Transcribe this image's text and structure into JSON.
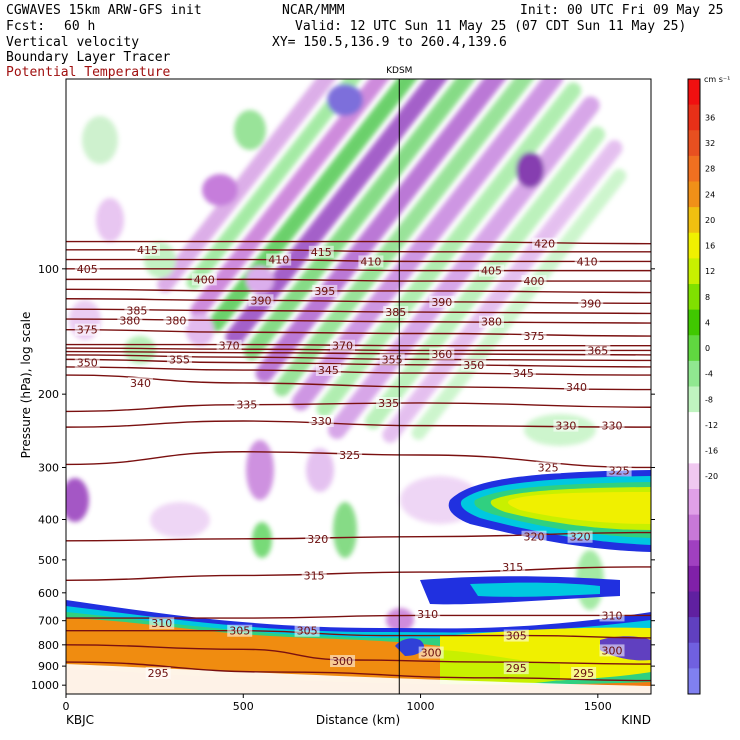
{
  "header": {
    "model": "CGWAVES 15km ARW-GFS init",
    "fcst_label": "Fcst:",
    "fcst_value": "60 h",
    "field1": "Vertical velocity",
    "field2": "Boundary Layer Tracer",
    "field3": "Potential Temperature",
    "org": "NCAR/MMM",
    "init": "Init: 00 UTC Fri 09 May 25",
    "valid": "Valid: 12 UTC Sun 11 May 25 (07 CDT Sun 11 May 25)",
    "xy": "XY= 150.5,136.9 to 260.4,139.6",
    "station_marker": "KDSM",
    "left_station": "KBJC",
    "right_station": "KIND"
  },
  "colors": {
    "theta": "#7a1010",
    "theta_label": "#6b0f0f",
    "field3_text": "#a01010"
  },
  "chart_data": {
    "type": "heatmap",
    "xlabel": "Distance (km)",
    "ylabel": "Pressure (hPa), log scale",
    "xlim": [
      0,
      1650
    ],
    "ylim_hpa": [
      1050,
      35
    ],
    "x_ticks": [
      0,
      500,
      1000,
      1500
    ],
    "y_ticks": [
      100,
      200,
      300,
      400,
      500,
      600,
      700,
      800,
      900,
      1000
    ],
    "colorbar": {
      "units": "cm s⁻¹",
      "tick_labels": [
        36,
        32,
        28,
        24,
        20,
        16,
        12,
        8,
        4,
        0,
        -4,
        -8,
        -12,
        -16,
        -20
      ],
      "colors": [
        "#f01010",
        "#e83018",
        "#e85020",
        "#f07020",
        "#f09018",
        "#f0c010",
        "#f0f000",
        "#c8f000",
        "#80e000",
        "#40c800",
        "#60d840",
        "#90e890",
        "#c0f4c0",
        "#ffffff",
        "#ffffff",
        "#f0c8f0",
        "#e0a0e8",
        "#c878d8",
        "#a040c0",
        "#8020a8",
        "#6020a0",
        "#6040c0",
        "#7060e0",
        "#8080f0"
      ]
    },
    "station_marker_x_km": 940,
    "theta_contours": [
      {
        "value": 295,
        "p": [
          [
            0,
            880
          ],
          [
            600,
            930
          ],
          [
            1200,
            960
          ],
          [
            1650,
            975
          ]
        ]
      },
      {
        "value": 300,
        "p": [
          [
            0,
            800
          ],
          [
            500,
            820
          ],
          [
            800,
            870
          ],
          [
            1200,
            880
          ],
          [
            1650,
            890
          ]
        ]
      },
      {
        "value": 305,
        "p": [
          [
            0,
            740
          ],
          [
            500,
            740
          ],
          [
            900,
            760
          ],
          [
            1300,
            760
          ],
          [
            1650,
            770
          ]
        ]
      },
      {
        "value": 310,
        "p": [
          [
            0,
            690
          ],
          [
            500,
            690
          ],
          [
            1000,
            680
          ],
          [
            1650,
            680
          ]
        ]
      },
      {
        "value": 315,
        "p": [
          [
            0,
            560
          ],
          [
            500,
            545
          ],
          [
            1000,
            535
          ],
          [
            1650,
            520
          ]
        ]
      },
      {
        "value": 320,
        "p": [
          [
            0,
            450
          ],
          [
            500,
            445
          ],
          [
            1000,
            440
          ],
          [
            1650,
            430
          ]
        ]
      },
      {
        "value": 325,
        "p": [
          [
            0,
            295
          ],
          [
            500,
            275
          ],
          [
            1000,
            280
          ],
          [
            1650,
            300
          ]
        ]
      },
      {
        "value": 330,
        "p": [
          [
            0,
            240
          ],
          [
            500,
            232
          ],
          [
            1000,
            238
          ],
          [
            1650,
            240
          ]
        ]
      },
      {
        "value": 335,
        "p": [
          [
            0,
            220
          ],
          [
            500,
            212
          ],
          [
            1000,
            210
          ],
          [
            1650,
            215
          ]
        ]
      },
      {
        "value": 340,
        "p": [
          [
            0,
            180
          ],
          [
            500,
            188
          ],
          [
            1000,
            192
          ],
          [
            1650,
            195
          ]
        ]
      },
      {
        "value": 345,
        "p": [
          [
            0,
            172
          ],
          [
            500,
            175
          ],
          [
            1000,
            178
          ],
          [
            1650,
            180
          ]
        ]
      },
      {
        "value": 350,
        "p": [
          [
            0,
            165
          ],
          [
            500,
            168
          ],
          [
            1000,
            170
          ],
          [
            1650,
            172
          ]
        ]
      },
      {
        "value": 355,
        "p": [
          [
            0,
            161
          ],
          [
            500,
            163
          ],
          [
            1000,
            165
          ],
          [
            1650,
            166
          ]
        ]
      },
      {
        "value": 360,
        "p": [
          [
            0,
            158
          ],
          [
            500,
            159
          ],
          [
            1000,
            160
          ],
          [
            1650,
            161
          ]
        ]
      },
      {
        "value": 365,
        "p": [
          [
            0,
            155
          ],
          [
            500,
            156
          ],
          [
            1000,
            157
          ],
          [
            1650,
            157
          ]
        ]
      },
      {
        "value": 370,
        "p": [
          [
            0,
            152
          ],
          [
            500,
            152
          ],
          [
            1000,
            153
          ],
          [
            1650,
            153
          ]
        ]
      },
      {
        "value": 375,
        "p": [
          [
            0,
            140
          ],
          [
            500,
            142
          ],
          [
            1000,
            143
          ],
          [
            1650,
            145
          ]
        ]
      },
      {
        "value": 380,
        "p": [
          [
            0,
            132
          ],
          [
            500,
            133
          ],
          [
            1000,
            134
          ],
          [
            1650,
            135
          ]
        ]
      },
      {
        "value": 385,
        "p": [
          [
            0,
            125
          ],
          [
            500,
            126
          ],
          [
            1000,
            127
          ],
          [
            1650,
            128
          ]
        ]
      },
      {
        "value": 390,
        "p": [
          [
            0,
            118
          ],
          [
            500,
            119
          ],
          [
            1000,
            120
          ],
          [
            1650,
            121
          ]
        ]
      },
      {
        "value": 395,
        "p": [
          [
            0,
            112
          ],
          [
            500,
            113
          ],
          [
            1000,
            113
          ],
          [
            1650,
            114
          ]
        ]
      },
      {
        "value": 400,
        "p": [
          [
            0,
            106
          ],
          [
            500,
            106
          ],
          [
            1000,
            107
          ],
          [
            1650,
            107
          ]
        ]
      },
      {
        "value": 405,
        "p": [
          [
            0,
            100
          ],
          [
            500,
            100
          ],
          [
            1000,
            101
          ],
          [
            1650,
            101
          ]
        ]
      },
      {
        "value": 410,
        "p": [
          [
            0,
            95
          ],
          [
            500,
            95
          ],
          [
            1000,
            96
          ],
          [
            1650,
            96
          ]
        ]
      },
      {
        "value": 415,
        "p": [
          [
            0,
            90
          ],
          [
            500,
            90
          ],
          [
            1000,
            91
          ],
          [
            1650,
            91
          ]
        ]
      },
      {
        "value": 420,
        "p": [
          [
            0,
            86
          ],
          [
            500,
            86
          ],
          [
            1000,
            86
          ],
          [
            1650,
            87
          ]
        ]
      }
    ],
    "theta_labels": [
      {
        "text": "295",
        "x": 260,
        "p": 935
      },
      {
        "text": "300",
        "x": 780,
        "p": 875
      },
      {
        "text": "295",
        "x": 1270,
        "p": 910
      },
      {
        "text": "295",
        "x": 1460,
        "p": 935
      },
      {
        "text": "300",
        "x": 1030,
        "p": 835
      },
      {
        "text": "300",
        "x": 1540,
        "p": 825
      },
      {
        "text": "305",
        "x": 490,
        "p": 740
      },
      {
        "text": "305",
        "x": 680,
        "p": 740
      },
      {
        "text": "305",
        "x": 1270,
        "p": 760
      },
      {
        "text": "310",
        "x": 270,
        "p": 710
      },
      {
        "text": "310",
        "x": 1020,
        "p": 675
      },
      {
        "text": "310",
        "x": 1540,
        "p": 680
      },
      {
        "text": "315",
        "x": 700,
        "p": 545
      },
      {
        "text": "315",
        "x": 1260,
        "p": 520
      },
      {
        "text": "320",
        "x": 710,
        "p": 445
      },
      {
        "text": "320",
        "x": 1320,
        "p": 440
      },
      {
        "text": "320",
        "x": 1450,
        "p": 440
      },
      {
        "text": "325",
        "x": 800,
        "p": 280
      },
      {
        "text": "325",
        "x": 1360,
        "p": 300
      },
      {
        "text": "325",
        "x": 1560,
        "p": 305
      },
      {
        "text": "330",
        "x": 720,
        "p": 232
      },
      {
        "text": "330",
        "x": 1410,
        "p": 238
      },
      {
        "text": "330",
        "x": 1540,
        "p": 238
      },
      {
        "text": "335",
        "x": 510,
        "p": 212
      },
      {
        "text": "335",
        "x": 910,
        "p": 210
      },
      {
        "text": "340",
        "x": 210,
        "p": 188
      },
      {
        "text": "340",
        "x": 1440,
        "p": 192
      },
      {
        "text": "345",
        "x": 740,
        "p": 175
      },
      {
        "text": "345",
        "x": 1290,
        "p": 178
      },
      {
        "text": "350",
        "x": 60,
        "p": 168
      },
      {
        "text": "350",
        "x": 1150,
        "p": 170
      },
      {
        "text": "355",
        "x": 320,
        "p": 165
      },
      {
        "text": "355",
        "x": 920,
        "p": 165
      },
      {
        "text": "360",
        "x": 1060,
        "p": 160
      },
      {
        "text": "365",
        "x": 1500,
        "p": 157
      },
      {
        "text": "370",
        "x": 460,
        "p": 153
      },
      {
        "text": "370",
        "x": 780,
        "p": 153
      },
      {
        "text": "375",
        "x": 60,
        "p": 140
      },
      {
        "text": "375",
        "x": 1320,
        "p": 145
      },
      {
        "text": "380",
        "x": 180,
        "p": 133
      },
      {
        "text": "380",
        "x": 310,
        "p": 133
      },
      {
        "text": "380",
        "x": 1200,
        "p": 134
      },
      {
        "text": "385",
        "x": 200,
        "p": 126
      },
      {
        "text": "385",
        "x": 930,
        "p": 127
      },
      {
        "text": "390",
        "x": 550,
        "p": 119
      },
      {
        "text": "390",
        "x": 1060,
        "p": 120
      },
      {
        "text": "390",
        "x": 1480,
        "p": 121
      },
      {
        "text": "395",
        "x": 730,
        "p": 113
      },
      {
        "text": "400",
        "x": 390,
        "p": 106
      },
      {
        "text": "400",
        "x": 1320,
        "p": 107
      },
      {
        "text": "405",
        "x": 60,
        "p": 100
      },
      {
        "text": "405",
        "x": 1200,
        "p": 101
      },
      {
        "text": "410",
        "x": 600,
        "p": 95
      },
      {
        "text": "410",
        "x": 860,
        "p": 96
      },
      {
        "text": "410",
        "x": 1470,
        "p": 96
      },
      {
        "text": "415",
        "x": 230,
        "p": 90
      },
      {
        "text": "415",
        "x": 720,
        "p": 91
      },
      {
        "text": "420",
        "x": 1350,
        "p": 87
      }
    ]
  }
}
